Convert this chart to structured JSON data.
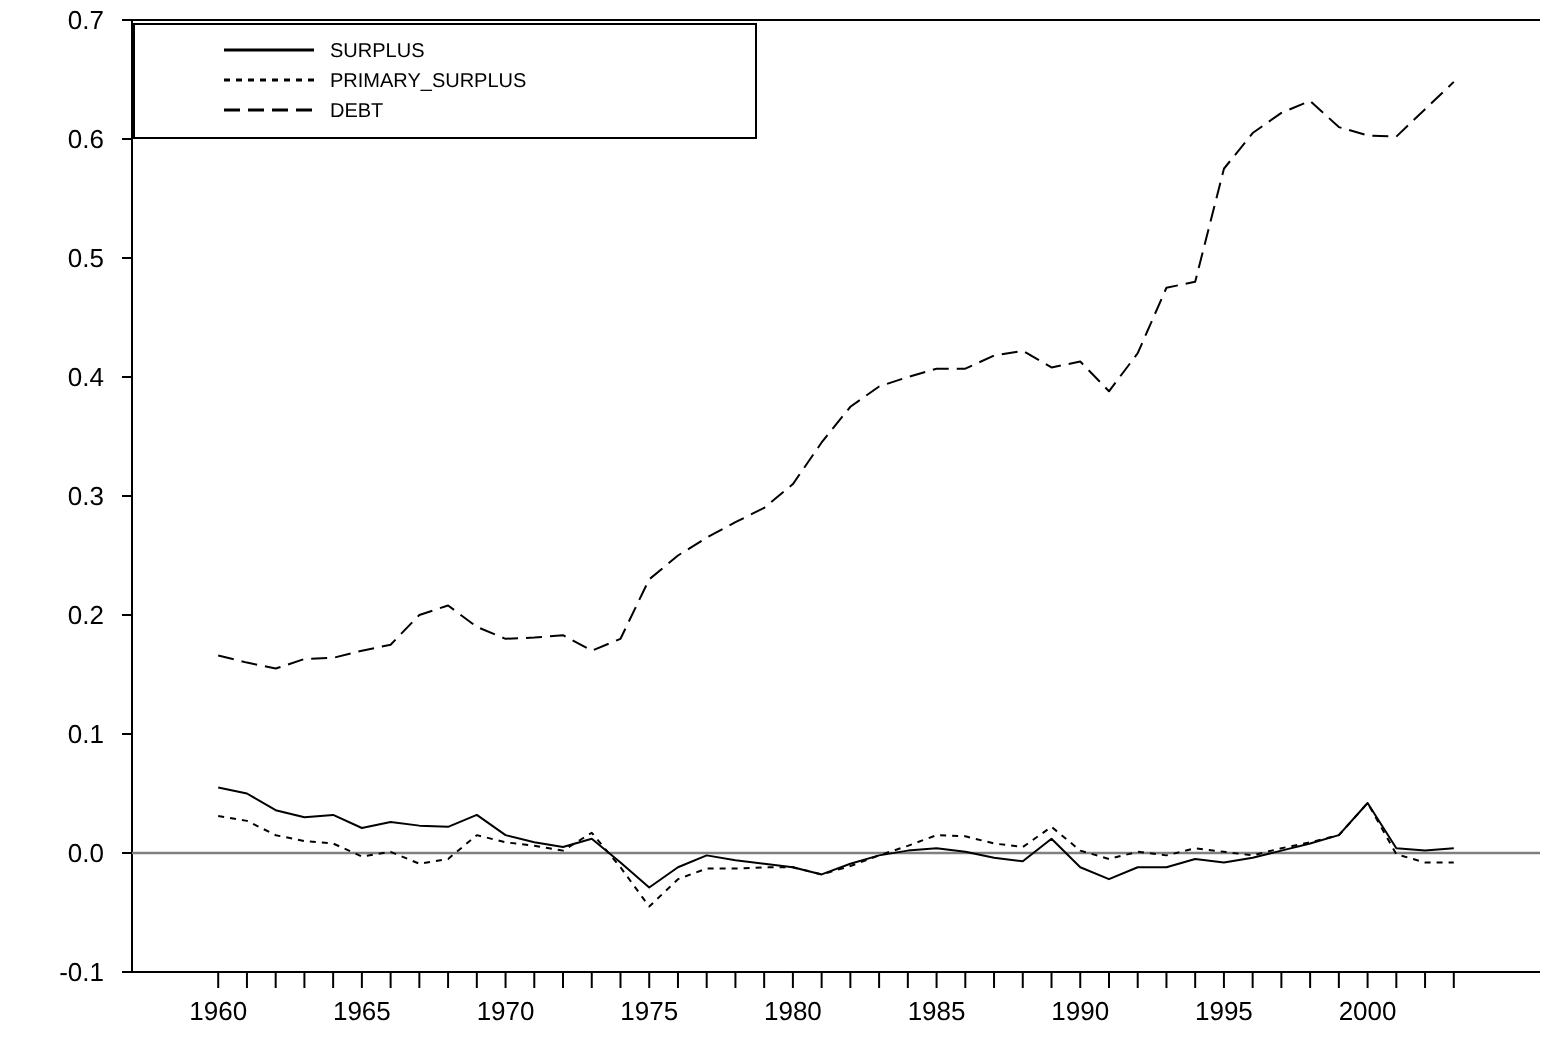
{
  "chart_data": {
    "type": "line",
    "x": [
      1960,
      1961,
      1962,
      1963,
      1964,
      1965,
      1966,
      1967,
      1968,
      1969,
      1970,
      1971,
      1972,
      1973,
      1974,
      1975,
      1976,
      1977,
      1978,
      1979,
      1980,
      1981,
      1982,
      1983,
      1984,
      1985,
      1986,
      1987,
      1988,
      1989,
      1990,
      1991,
      1992,
      1993,
      1994,
      1995,
      1996,
      1997,
      1998,
      1999,
      2000,
      2001,
      2002,
      2003
    ],
    "series": [
      {
        "name": "SURPLUS",
        "color": "#000000",
        "line_style": "solid",
        "values": [
          0.055,
          0.05,
          0.036,
          0.03,
          0.032,
          0.021,
          0.026,
          0.023,
          0.022,
          0.032,
          0.015,
          0.009,
          0.005,
          0.012,
          -0.008,
          -0.029,
          -0.012,
          -0.002,
          -0.006,
          -0.009,
          -0.012,
          -0.018,
          -0.009,
          -0.002,
          0.002,
          0.004,
          0.001,
          -0.004,
          -0.007,
          0.012,
          -0.012,
          -0.022,
          -0.012,
          -0.012,
          -0.005,
          -0.008,
          -0.004,
          0.002,
          0.008,
          0.015,
          0.042,
          0.004,
          0.002,
          0.004
        ]
      },
      {
        "name": "PRIMARY_SURPLUS",
        "color": "#000000",
        "line_style": "dotted",
        "values": [
          0.031,
          0.027,
          0.015,
          0.01,
          0.008,
          -0.003,
          0.001,
          -0.009,
          -0.005,
          0.015,
          0.009,
          0.006,
          0.002,
          0.017,
          -0.012,
          -0.045,
          -0.022,
          -0.013,
          -0.013,
          -0.012,
          -0.012,
          -0.018,
          -0.011,
          -0.002,
          0.006,
          0.015,
          0.014,
          0.008,
          0.005,
          0.022,
          0.002,
          -0.005,
          0.001,
          -0.002,
          0.004,
          0.001,
          -0.002,
          0.004,
          0.009,
          0.015,
          0.042,
          -0.001,
          -0.008,
          -0.008
        ]
      },
      {
        "name": "DEBT",
        "color": "#000000",
        "line_style": "dashed",
        "values": [
          0.166,
          0.16,
          0.155,
          0.163,
          0.164,
          0.17,
          0.175,
          0.2,
          0.208,
          0.19,
          0.18,
          0.181,
          0.183,
          0.17,
          0.18,
          0.23,
          0.25,
          0.265,
          0.278,
          0.29,
          0.31,
          0.345,
          0.375,
          0.392,
          0.4,
          0.407,
          0.407,
          0.418,
          0.422,
          0.408,
          0.413,
          0.388,
          0.42,
          0.475,
          0.48,
          0.575,
          0.605,
          0.622,
          0.632,
          0.61,
          0.603,
          0.602,
          0.625,
          0.648
        ]
      }
    ],
    "xlim": [
      1957,
      2006
    ],
    "xticks": [
      1960,
      {
        "value": 1961,
        "label": null
      },
      {
        "value": 1962,
        "label": null
      },
      {
        "value": 1963,
        "label": null
      },
      {
        "value": 1964,
        "label": null
      },
      1965,
      {
        "value": 1966,
        "label": null
      },
      {
        "value": 1967,
        "label": null
      },
      {
        "value": 1968,
        "label": null
      },
      {
        "value": 1969,
        "label": null
      },
      1970,
      {
        "value": 1971,
        "label": null
      },
      {
        "value": 1972,
        "label": null
      },
      {
        "value": 1973,
        "label": null
      },
      {
        "value": 1974,
        "label": null
      },
      1975,
      {
        "value": 1976,
        "label": null
      },
      {
        "value": 1977,
        "label": null
      },
      {
        "value": 1978,
        "label": null
      },
      {
        "value": 1979,
        "label": null
      },
      1980,
      {
        "value": 1981,
        "label": null
      },
      {
        "value": 1982,
        "label": null
      },
      {
        "value": 1983,
        "label": null
      },
      {
        "value": 1984,
        "label": null
      },
      1985,
      {
        "value": 1986,
        "label": null
      },
      {
        "value": 1987,
        "label": null
      },
      {
        "value": 1988,
        "label": null
      },
      {
        "value": 1989,
        "label": null
      },
      1990,
      {
        "value": 1991,
        "label": null
      },
      {
        "value": 1992,
        "label": null
      },
      {
        "value": 1993,
        "label": null
      },
      {
        "value": 1994,
        "label": null
      },
      1995,
      {
        "value": 1996,
        "label": null
      },
      {
        "value": 1997,
        "label": null
      },
      {
        "value": 1998,
        "label": null
      },
      {
        "value": 1999,
        "label": null
      },
      2000,
      {
        "value": 2001,
        "label": null
      },
      {
        "value": 2002,
        "label": null
      },
      {
        "value": 2003,
        "label": null
      }
    ],
    "ylim": [
      -0.1,
      0.7
    ],
    "yticks": [
      {
        "value": -0.1,
        "label": "-0.1"
      },
      {
        "value": 0,
        "label": "0.0"
      },
      {
        "value": 0.1,
        "label": "0.1"
      },
      {
        "value": 0.2,
        "label": "0.2"
      },
      {
        "value": 0.3,
        "label": "0.3"
      },
      {
        "value": 0.4,
        "label": "0.4"
      },
      {
        "value": 0.5,
        "label": "0.5"
      },
      {
        "value": 0.6,
        "label": "0.6"
      },
      {
        "value": 0.7,
        "label": "0.7"
      }
    ],
    "ref_lines": [
      {
        "axis": "y",
        "value": 0,
        "color": "#808080",
        "line_style": "solid"
      }
    ],
    "legend": "top left",
    "grid": false,
    "marker": "none"
  }
}
